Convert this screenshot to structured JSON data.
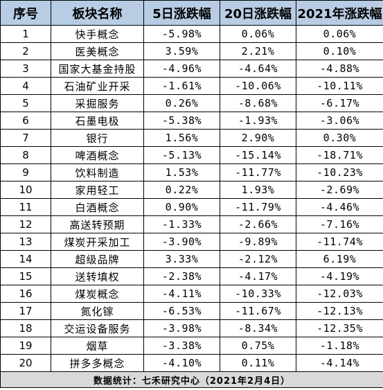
{
  "table": {
    "headers": [
      "序号",
      "板块名称",
      "5日涨跌幅",
      "20日涨跌幅",
      "2021年涨跌幅"
    ],
    "rows": [
      [
        "1",
        "快手概念",
        "-5.98%",
        "0.06%",
        "0.06%"
      ],
      [
        "2",
        "医美概念",
        "3.59%",
        "2.21%",
        "0.10%"
      ],
      [
        "3",
        "国家大基金持股",
        "-4.96%",
        "-4.64%",
        "-4.88%"
      ],
      [
        "4",
        "石油矿业开采",
        "-1.61%",
        "-10.06%",
        "-10.11%"
      ],
      [
        "5",
        "采掘服务",
        "0.26%",
        "-8.68%",
        "-6.17%"
      ],
      [
        "6",
        "石墨电极",
        "-5.38%",
        "-1.93%",
        "-3.06%"
      ],
      [
        "7",
        "银行",
        "1.56%",
        "2.90%",
        "0.30%"
      ],
      [
        "8",
        "啤酒概念",
        "-5.13%",
        "-15.14%",
        "-18.71%"
      ],
      [
        "9",
        "饮料制造",
        "1.53%",
        "-11.77%",
        "-10.23%"
      ],
      [
        "10",
        "家用轻工",
        "0.22%",
        "1.93%",
        "-2.69%"
      ],
      [
        "11",
        "白酒概念",
        "0.90%",
        "-11.79%",
        "-4.46%"
      ],
      [
        "12",
        "高送转预期",
        "-1.33%",
        "-2.66%",
        "-7.16%"
      ],
      [
        "13",
        "煤炭开采加工",
        "-3.90%",
        "-9.89%",
        "-11.74%"
      ],
      [
        "14",
        "超级品牌",
        "3.33%",
        "-2.12%",
        "6.19%"
      ],
      [
        "15",
        "送转填权",
        "-2.38%",
        "-4.17%",
        "-4.19%"
      ],
      [
        "16",
        "煤炭概念",
        "-4.11%",
        "-10.33%",
        "-12.03%"
      ],
      [
        "17",
        "氮化镓",
        "-6.53%",
        "-11.67%",
        "-12.13%"
      ],
      [
        "18",
        "交运设备服务",
        "-3.98%",
        "-8.34%",
        "-12.35%"
      ],
      [
        "19",
        "烟草",
        "-3.38%",
        "0.75%",
        "-1.18%"
      ],
      [
        "20",
        "拼多多概念",
        "-4.10%",
        "0.11%",
        "-4.14%"
      ]
    ],
    "footer": "数据统计：七禾研究中心（2021年2月4日）"
  },
  "colors": {
    "header_bg": "#b8cce4",
    "footer_bg": "#d9d9d9",
    "border": "#000000"
  }
}
